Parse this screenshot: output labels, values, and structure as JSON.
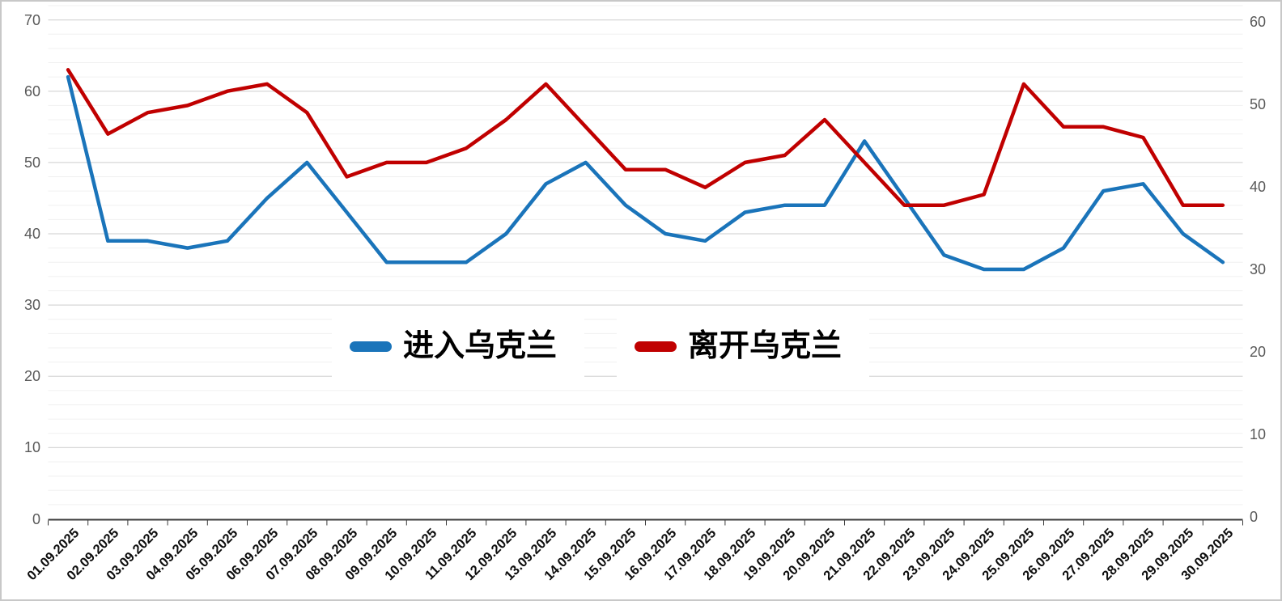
{
  "chart_data": {
    "type": "line",
    "title": "",
    "categories": [
      "01.09.2025",
      "02.09.2025",
      "03.09.2025",
      "04.09.2025",
      "05.09.2025",
      "06.09.2025",
      "07.09.2025",
      "08.09.2025",
      "09.09.2025",
      "10.09.2025",
      "11.09.2025",
      "12.09.2025",
      "13.09.2025",
      "14.09.2025",
      "15.09.2025",
      "16.09.2025",
      "17.09.2025",
      "18.09.2025",
      "19.09.2025",
      "20.09.2025",
      "21.09.2025",
      "22.09.2025",
      "23.09.2025",
      "24.09.2025",
      "25.09.2025",
      "26.09.2025",
      "27.09.2025",
      "28.09.2025",
      "29.09.2025",
      "30.09.2025"
    ],
    "series": [
      {
        "name": "进入乌克兰",
        "color": "#1a74ba",
        "axis": "left",
        "values": [
          62,
          39,
          39,
          38,
          39,
          45,
          50,
          43,
          36,
          36,
          36,
          40,
          47,
          50,
          44,
          40,
          39,
          43,
          44,
          44,
          53,
          45,
          37,
          35,
          35,
          38,
          46,
          47,
          40,
          36
        ]
      },
      {
        "name": "离开乌克兰",
        "color": "#c00000",
        "axis": "left",
        "values": [
          63,
          54,
          57,
          58,
          60,
          61,
          57,
          48,
          50,
          50,
          52,
          56,
          61,
          55,
          49,
          49,
          46.5,
          50,
          51,
          56,
          50,
          44,
          44,
          45.5,
          61,
          55,
          55,
          53.5,
          44,
          44
        ]
      }
    ],
    "left_axis": {
      "min": 0,
      "max": 70,
      "major_step": 10,
      "minor_step": 2,
      "tick_labels": [
        "0",
        "10",
        "20",
        "30",
        "40",
        "50",
        "60",
        "70"
      ]
    },
    "right_axis": {
      "min": 0,
      "max": 60,
      "major_step": 10,
      "tick_labels": [
        "0",
        "10",
        "20",
        "30",
        "40",
        "50",
        "60"
      ]
    },
    "legend": {
      "position": "floating-center",
      "entries": [
        "进入乌克兰",
        "离开乌克兰"
      ]
    },
    "grid": {
      "major_color": "#d7d7d7",
      "minor_color": "#f0f0f0",
      "axis_line_color": "#3b3b3b"
    }
  }
}
